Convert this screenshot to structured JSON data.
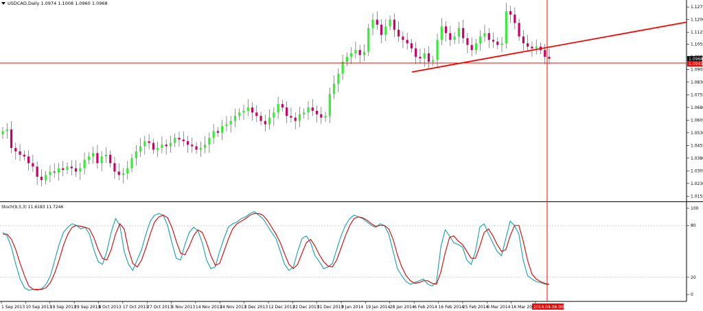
{
  "header": {
    "symbol_line": "USDCAD,Daily  1.0974 1.1008 1.0960 1.0968"
  },
  "indicator": {
    "label": "Stoch(9,3,3) 11.6183 11.7246"
  },
  "colors": {
    "bull": "#33ee33",
    "bear": "#cc0066",
    "main_line": "#20a8b0",
    "signal_line": "#dd1111",
    "marker": "#ff0000"
  },
  "chart_data": [
    {
      "type": "candlestick",
      "title": "USDCAD,Daily",
      "ylim": [
        1.014,
        1.13
      ],
      "y_ticks": [
        "1.1275",
        "1.1200",
        "1.1125",
        "1.1055",
        "1.0980",
        "1.0905",
        "1.0830",
        "1.0755",
        "1.0680",
        "1.0605",
        "1.0530",
        "1.0455",
        "1.0380",
        "1.0305",
        "1.0230",
        "1.0155"
      ],
      "x_ticks": [
        "1 Sep 2013",
        "10 Sep 2013",
        "19 Sep 2013",
        "29 Sep 2013",
        "8 Oct 2013",
        "17 Oct 2013",
        "27 Oct 2013",
        "5 Nov 2013",
        "14 Nov 2013",
        "24 Nov 2013",
        "3 Dec 2013",
        "12 Dec 2013",
        "22 Dec 2013",
        "31 Dec 2013",
        "9 Jan 2014",
        "19 Jan 2014",
        "28 Jan 2014",
        "6 Feb 2014",
        "16 Feb 2014",
        "25 Feb 2014",
        "6 Mar 2014",
        "16 Mar 2014",
        "25 Mar 2014"
      ],
      "price_labels": {
        "current": "1.0968",
        "line": "1.0943"
      },
      "crosshair_time": "2014.04.06 00:00",
      "closes": [
        1.054,
        1.055,
        1.044,
        1.042,
        1.04,
        1.039,
        1.035,
        1.033,
        1.027,
        1.025,
        1.028,
        1.03,
        1.0295,
        1.032,
        1.031,
        1.033,
        1.032,
        1.03,
        1.032,
        1.037,
        1.039,
        1.041,
        1.035,
        1.039,
        1.04,
        1.035,
        1.03,
        1.028,
        1.029,
        1.032,
        1.038,
        1.042,
        1.045,
        1.048,
        1.047,
        1.043,
        1.044,
        1.046,
        1.045,
        1.047,
        1.05,
        1.049,
        1.048,
        1.046,
        1.045,
        1.043,
        1.044,
        1.046,
        1.05,
        1.054,
        1.053,
        1.057,
        1.058,
        1.06,
        1.063,
        1.065,
        1.066,
        1.068,
        1.065,
        1.063,
        1.06,
        1.058,
        1.062,
        1.065,
        1.07,
        1.068,
        1.063,
        1.062,
        1.06,
        1.064,
        1.065,
        1.068,
        1.066,
        1.064,
        1.062,
        1.063,
        1.076,
        1.082,
        1.088,
        1.095,
        1.098,
        1.1,
        1.102,
        1.099,
        1.101,
        1.115,
        1.12,
        1.117,
        1.111,
        1.116,
        1.12,
        1.114,
        1.11,
        1.108,
        1.106,
        1.103,
        1.098,
        1.097,
        1.1,
        1.095,
        1.096,
        1.108,
        1.116,
        1.112,
        1.108,
        1.11,
        1.115,
        1.109,
        1.105,
        1.102,
        1.106,
        1.11,
        1.112,
        1.108,
        1.107,
        1.105,
        1.106,
        1.125,
        1.123,
        1.118,
        1.11,
        1.106,
        1.104,
        1.103,
        1.104,
        1.102,
        1.098,
        1.0968
      ]
    },
    {
      "type": "line",
      "title": "Stoch(9,3,3)",
      "ylim": [
        0,
        100
      ],
      "y_ticks": [
        "100",
        "80",
        "20",
        "0"
      ],
      "series": [
        {
          "name": "main",
          "values": [
            72,
            68,
            55,
            35,
            18,
            8,
            5,
            6,
            5,
            7,
            12,
            22,
            40,
            58,
            72,
            78,
            82,
            80,
            76,
            78,
            70,
            52,
            38,
            35,
            50,
            72,
            88,
            80,
            50,
            35,
            28,
            40,
            52,
            70,
            85,
            92,
            94,
            92,
            80,
            60,
            42,
            40,
            58,
            72,
            78,
            74,
            60,
            40,
            30,
            32,
            50,
            65,
            78,
            82,
            84,
            88,
            90,
            94,
            96,
            92,
            88,
            80,
            72,
            65,
            50,
            35,
            28,
            32,
            50,
            65,
            68,
            60,
            45,
            38,
            30,
            32,
            36,
            52,
            68,
            80,
            88,
            92,
            90,
            88,
            84,
            80,
            78,
            82,
            80,
            70,
            50,
            30,
            22,
            15,
            12,
            14,
            16,
            18,
            12,
            10,
            14,
            55,
            75,
            68,
            60,
            58,
            55,
            40,
            35,
            50,
            78,
            82,
            70,
            60,
            50,
            45,
            65,
            85,
            80,
            70,
            40,
            22,
            18,
            15,
            14,
            12,
            11.6
          ]
        },
        {
          "name": "signal",
          "values": [
            70,
            70,
            64,
            52,
            36,
            22,
            10,
            6,
            6,
            6,
            8,
            14,
            25,
            40,
            57,
            70,
            78,
            80,
            79,
            78,
            76,
            66,
            52,
            42,
            40,
            52,
            70,
            82,
            76,
            52,
            36,
            32,
            40,
            54,
            70,
            84,
            90,
            92,
            89,
            78,
            62,
            48,
            46,
            56,
            68,
            75,
            72,
            60,
            45,
            34,
            36,
            50,
            64,
            76,
            82,
            85,
            88,
            92,
            94,
            94,
            92,
            86,
            78,
            70,
            60,
            47,
            35,
            30,
            35,
            48,
            60,
            64,
            56,
            46,
            38,
            33,
            32,
            40,
            54,
            68,
            80,
            88,
            90,
            89,
            86,
            82,
            79,
            80,
            80,
            76,
            64,
            46,
            32,
            22,
            16,
            13,
            14,
            16,
            16,
            13,
            12,
            26,
            48,
            66,
            68,
            62,
            58,
            50,
            42,
            42,
            56,
            72,
            76,
            68,
            58,
            50,
            52,
            68,
            80,
            80,
            62,
            40,
            24,
            18,
            15,
            13,
            11.7
          ]
        }
      ]
    }
  ]
}
